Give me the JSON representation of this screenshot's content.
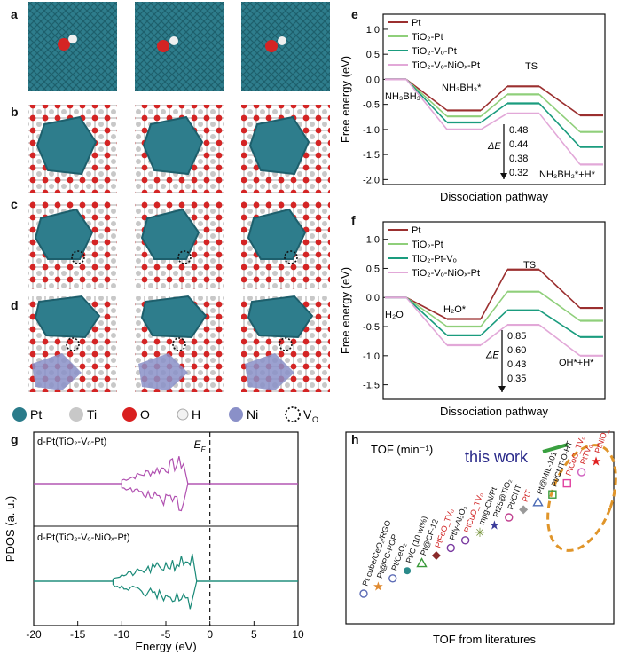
{
  "panel_labels": {
    "a": "a",
    "b": "b",
    "c": "c",
    "d": "d",
    "e": "e",
    "f": "f",
    "g": "g",
    "h": "h"
  },
  "structure_legend": [
    {
      "label": "Pt",
      "color": "#2a7b8a"
    },
    {
      "label": "Ti",
      "color": "#c8c8c8"
    },
    {
      "label": "O",
      "color": "#d92020"
    },
    {
      "label": "H",
      "color": "#f2f2f2"
    },
    {
      "label": "Ni",
      "color": "#8a90c8"
    },
    {
      "label": "V",
      "sub": "O",
      "color": "none"
    }
  ],
  "chart_data": [
    {
      "id": "e",
      "type": "line",
      "ylabel": "Free energy (eV)",
      "xlabel": "Dissociation pathway",
      "ylim": [
        -2.1,
        1.3
      ],
      "yticks": [
        "1.0",
        "0.5",
        "0.0",
        "-0.5",
        "-1.0",
        "-1.5",
        "-2.0"
      ],
      "series": [
        {
          "name": "Pt",
          "color": "#9b2f2f",
          "values": [
            0.0,
            -0.62,
            -0.14,
            -0.72
          ]
        },
        {
          "name": "TiO₂-Pt",
          "color": "#8fcf7a",
          "values": [
            0.0,
            -0.74,
            -0.3,
            -1.05
          ]
        },
        {
          "name": "TiO₂-Vₒ-Pt",
          "color": "#1a9c7e",
          "values": [
            0.0,
            -0.86,
            -0.48,
            -1.35
          ]
        },
        {
          "name": "TiO₂-Vₒ-NiOₓ-Pt",
          "color": "#e2a8d8",
          "values": [
            0.0,
            -1.0,
            -0.68,
            -1.7
          ]
        }
      ],
      "states": [
        "NH₃BH₃",
        "NH₃BH₃*",
        "TS",
        "NH₃BH₂*+H*"
      ],
      "barrier_label": "ΔE",
      "barriers": [
        "0.48",
        "0.44",
        "0.38",
        "0.32"
      ]
    },
    {
      "id": "f",
      "type": "line",
      "ylabel": "Free energy (eV)",
      "xlabel": "Dissociation pathway",
      "ylim": [
        -1.75,
        1.3
      ],
      "yticks": [
        "1.0",
        "0.5",
        "0.0",
        "-0.5",
        "-1.0",
        "-1.5"
      ],
      "series": [
        {
          "name": "Pt",
          "color": "#9b2f2f",
          "values": [
            0.0,
            -0.37,
            0.48,
            -0.18
          ]
        },
        {
          "name": "TiO₂-Pt",
          "color": "#8fcf7a",
          "values": [
            0.0,
            -0.5,
            0.1,
            -0.4
          ]
        },
        {
          "name": "TiO₂-Pt-Vₒ",
          "color": "#1a9c7e",
          "values": [
            0.0,
            -0.65,
            -0.22,
            -0.68
          ]
        },
        {
          "name": "TiO₂-Vₒ-NiOₓ-Pt",
          "color": "#e2a8d8",
          "values": [
            0.0,
            -0.82,
            -0.47,
            -1.0
          ]
        }
      ],
      "states": [
        "H₂O",
        "H₂O*",
        "TS",
        "OH*+H*"
      ],
      "barrier_label": "ΔE",
      "barriers": [
        "0.85",
        "0.60",
        "0.43",
        "0.35"
      ]
    },
    {
      "id": "g",
      "type": "line",
      "xlabel": "Energy (eV)",
      "ylabel": "PDOS (a. u.)",
      "xlim": [
        -20,
        10
      ],
      "xticks": [
        "-20",
        "-15",
        "-10",
        "-5",
        "0",
        "5",
        "10"
      ],
      "fermi_label": "E",
      "fermi_sub": "F",
      "series": [
        {
          "name": "d-Pt(TiO₂-Vₒ-Pt)",
          "color": "#b050b0"
        },
        {
          "name": "d-Pt(TiO₂-Vₒ-NiOₓ-Pt)",
          "color": "#1a8a78"
        }
      ]
    },
    {
      "id": "h",
      "type": "scatter",
      "title": "TOF (min⁻¹)",
      "xlabel": "TOF from literatures",
      "highlight": "this work",
      "points": [
        {
          "label": "Pt cube/CeO₂/RGO",
          "color": "#5b6bb5",
          "marker": "circle",
          "red": false
        },
        {
          "label": "Pt@PC-POP",
          "color": "#e08a30",
          "marker": "star",
          "red": false
        },
        {
          "label": "Pt/CeO₂",
          "color": "#5b6bb5",
          "marker": "circle",
          "red": false
        },
        {
          "label": "Pt/C (10 wt%)",
          "color": "#2a8a8a",
          "marker": "dot",
          "red": false
        },
        {
          "label": "Pt@CF-12",
          "color": "#3a9a3a",
          "marker": "triangle",
          "red": false
        },
        {
          "label": "PtFeO_TVₒ",
          "color": "#8a2a2a",
          "marker": "diamond",
          "red": true
        },
        {
          "label": "Pt/γ-Al₂O₃",
          "color": "#7a3aa0",
          "marker": "pentagon",
          "red": false
        },
        {
          "label": "PtCuO_TVₒ",
          "color": "#7a3aa0",
          "marker": "tri-left",
          "red": true
        },
        {
          "label": "mpg-CN/Pt",
          "color": "#6a8a2a",
          "marker": "asterisk",
          "red": false
        },
        {
          "label": "Pt25@TiO₂",
          "color": "#3a3a9a",
          "marker": "star",
          "red": false
        },
        {
          "label": "Pt/CNT",
          "color": "#c04090",
          "marker": "circle",
          "red": false
        },
        {
          "label": "PtT",
          "color": "#999999",
          "marker": "diamond",
          "red": true
        },
        {
          "label": "Pt@MIL-101",
          "color": "#4a6ab5",
          "marker": "triangle",
          "red": false
        },
        {
          "label": "Pt/CNT-O-HT",
          "color": "#3a9a3a",
          "marker": "hatched-square",
          "red": false
        },
        {
          "label": "PtCoO_TVₒ",
          "color": "#e040a0",
          "marker": "square",
          "red": true
        },
        {
          "label": "PtTVₒ",
          "color": "#d060c0",
          "marker": "tri-right",
          "red": true
        },
        {
          "label": "PtNiO_TVₒ",
          "color": "#e02020",
          "marker": "star",
          "red": true
        }
      ]
    }
  ]
}
